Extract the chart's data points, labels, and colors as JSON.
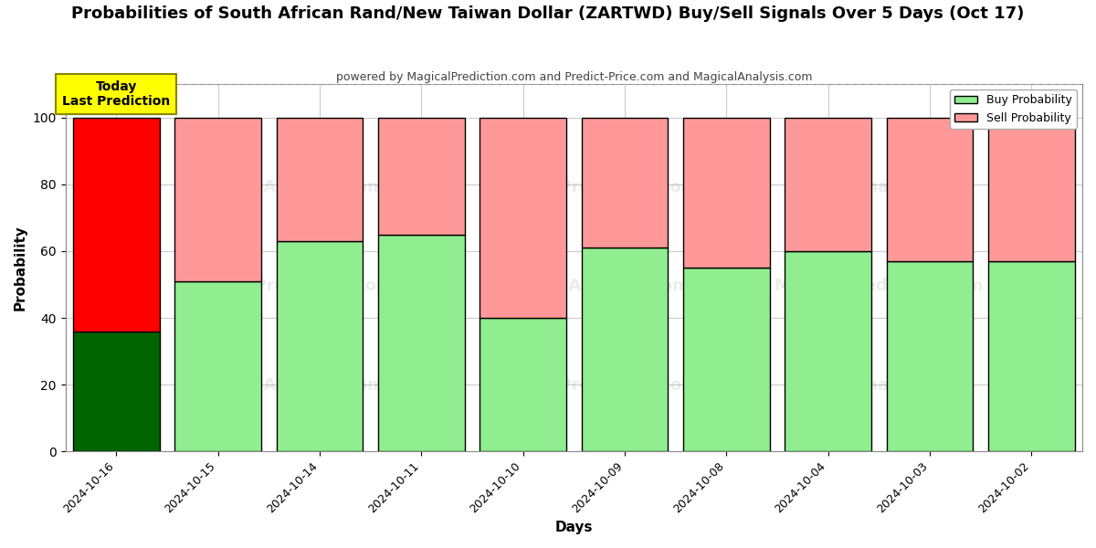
{
  "title": "Probabilities of South African Rand/New Taiwan Dollar (ZARTWD) Buy/Sell Signals Over 5 Days (Oct 17)",
  "subtitle": "powered by MagicalPrediction.com and Predict-Price.com and MagicalAnalysis.com",
  "xlabel": "Days",
  "ylabel": "Probability",
  "dates": [
    "2024-10-16",
    "2024-10-15",
    "2024-10-14",
    "2024-10-11",
    "2024-10-10",
    "2024-10-09",
    "2024-10-08",
    "2024-10-04",
    "2024-10-03",
    "2024-10-02"
  ],
  "buy_values": [
    36,
    51,
    63,
    65,
    40,
    61,
    55,
    60,
    57,
    57
  ],
  "sell_values": [
    64,
    49,
    37,
    35,
    60,
    39,
    45,
    40,
    43,
    43
  ],
  "buy_colors": [
    "#006400",
    "#90EE90",
    "#90EE90",
    "#90EE90",
    "#90EE90",
    "#90EE90",
    "#90EE90",
    "#90EE90",
    "#90EE90",
    "#90EE90"
  ],
  "sell_colors": [
    "#FF0000",
    "#FF9999",
    "#FF9999",
    "#FF9999",
    "#FF9999",
    "#FF9999",
    "#FF9999",
    "#FF9999",
    "#FF9999",
    "#FF9999"
  ],
  "legend_buy_color": "#90EE90",
  "legend_sell_color": "#FF9999",
  "today_box_color": "#FFFF00",
  "today_label": "Today\nLast Prediction",
  "ylim": [
    0,
    110
  ],
  "yticks": [
    0,
    20,
    40,
    60,
    80,
    100
  ],
  "dashed_line_y": 110,
  "bar_edge_color": "#000000",
  "bar_linewidth": 1.0,
  "background_color": "#ffffff",
  "grid_color": "#cccccc",
  "bar_width": 0.85,
  "title_fontsize": 13,
  "subtitle_fontsize": 9,
  "watermark_rows": 3,
  "watermark_alpha": 0.15
}
